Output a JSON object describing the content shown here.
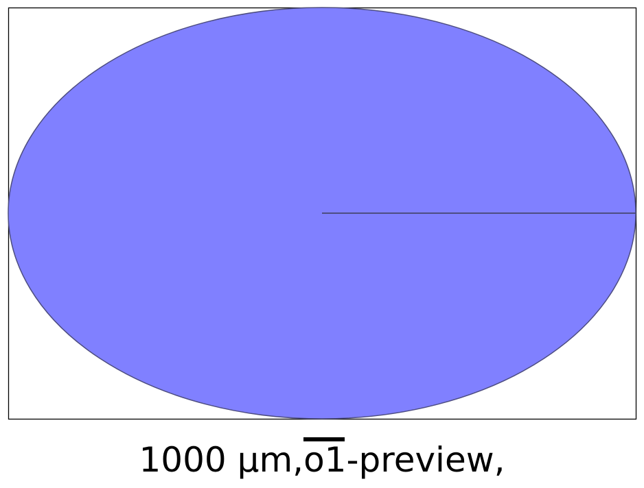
{
  "diagram": {
    "shape": "ellipse",
    "fill_color": "#8080ff",
    "stroke_color": "#4d4d80",
    "frame_color": "#000000",
    "has_radius_line": true
  },
  "caption": {
    "prefix": "1000 µm,",
    "scale_bar_text": "o1",
    "suffix": "-preview,"
  }
}
